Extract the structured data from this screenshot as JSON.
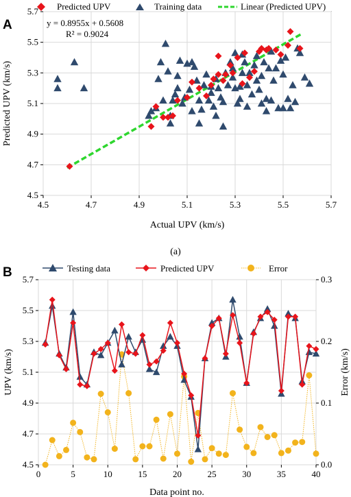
{
  "panel_a": {
    "panel_label": "A",
    "caption": "(a)",
    "legend": {
      "predicted": "Predicted UPV",
      "training": "Training data",
      "linear": "Linear (Predicted UPV)"
    },
    "equation": "y = 0.8955x + 0.5608",
    "r_squared": "R² = 0.9024"
  },
  "panel_b": {
    "panel_label": "B",
    "legend": {
      "testing": "Testing data",
      "predicted": "Predicted UPV",
      "error": "Error"
    }
  },
  "colors": {
    "predicted": "#e8141b",
    "training": "#2f4a6d",
    "linear": "#2ed62e",
    "error": "#f2b31c"
  },
  "chart_data": [
    {
      "type": "scatter",
      "xlabel": "Actual UPV (km/s)",
      "ylabel": "Predicted UPV (km/s)",
      "xlim": [
        4.5,
        5.7
      ],
      "ylim": [
        4.5,
        5.7
      ],
      "x_ticks": [
        "4.5",
        "4.7",
        "4.9",
        "5.1",
        "5.3",
        "5.5",
        "5.7"
      ],
      "y_ticks": [
        "4.5",
        "4.7",
        "4.9",
        "5.1",
        "5.3",
        "5.5",
        "5.7"
      ],
      "legend_position": "top",
      "series": [
        {
          "name": "Predicted UPV",
          "marker": "diamond",
          "points": [
            [
              4.61,
              4.69
            ],
            [
              4.95,
              4.95
            ],
            [
              4.97,
              5.08
            ],
            [
              5.0,
              5.01
            ],
            [
              5.02,
              5.01
            ],
            [
              5.04,
              5.02
            ],
            [
              5.06,
              5.12
            ],
            [
              5.1,
              5.14
            ],
            [
              5.12,
              5.24
            ],
            [
              5.15,
              5.2
            ],
            [
              5.18,
              5.15
            ],
            [
              5.2,
              5.22
            ],
            [
              5.21,
              5.26
            ],
            [
              5.23,
              5.29
            ],
            [
              5.23,
              5.41
            ],
            [
              5.25,
              5.25
            ],
            [
              5.26,
              5.29
            ],
            [
              5.28,
              5.35
            ],
            [
              5.29,
              5.3
            ],
            [
              5.31,
              5.4
            ],
            [
              5.33,
              5.23
            ],
            [
              5.34,
              5.43
            ],
            [
              5.36,
              5.27
            ],
            [
              5.38,
              5.31
            ],
            [
              5.4,
              5.44
            ],
            [
              5.41,
              5.46
            ],
            [
              5.43,
              5.45
            ],
            [
              5.44,
              5.46
            ],
            [
              5.47,
              5.45
            ],
            [
              5.49,
              5.42
            ],
            [
              5.52,
              5.48
            ],
            [
              5.53,
              5.57
            ],
            [
              5.57,
              5.46
            ]
          ]
        },
        {
          "name": "Training data",
          "marker": "triangle",
          "points": [
            [
              4.56,
              5.26
            ],
            [
              4.56,
              5.2
            ],
            [
              4.63,
              5.37
            ],
            [
              4.67,
              5.2
            ],
            [
              4.94,
              5.02
            ],
            [
              4.95,
              5.05
            ],
            [
              4.97,
              5.07
            ],
            [
              4.98,
              5.26
            ],
            [
              4.99,
              5.37
            ],
            [
              5.0,
              5.12
            ],
            [
              5.01,
              5.49
            ],
            [
              5.02,
              5.31
            ],
            [
              5.03,
              4.97
            ],
            [
              5.03,
              5.02
            ],
            [
              5.04,
              5.12
            ],
            [
              5.05,
              5.16
            ],
            [
              5.06,
              5.2
            ],
            [
              5.06,
              5.28
            ],
            [
              5.07,
              5.38
            ],
            [
              5.08,
              5.1
            ],
            [
              5.09,
              5.14
            ],
            [
              5.1,
              5.36
            ],
            [
              5.11,
              5.19
            ],
            [
              5.12,
              5.37
            ],
            [
              5.12,
              5.05
            ],
            [
              5.13,
              5.34
            ],
            [
              5.14,
              5.25
            ],
            [
              5.15,
              4.97
            ],
            [
              5.15,
              5.12
            ],
            [
              5.16,
              5.06
            ],
            [
              5.17,
              5.22
            ],
            [
              5.18,
              5.29
            ],
            [
              5.19,
              5.12
            ],
            [
              5.2,
              5.17
            ],
            [
              5.2,
              5.21
            ],
            [
              5.21,
              5.08
            ],
            [
              5.22,
              5.26
            ],
            [
              5.22,
              5.02
            ],
            [
              5.23,
              5.2
            ],
            [
              5.24,
              5.14
            ],
            [
              5.25,
              4.95
            ],
            [
              5.25,
              5.11
            ],
            [
              5.26,
              5.3
            ],
            [
              5.27,
              5.22
            ],
            [
              5.28,
              5.37
            ],
            [
              5.29,
              5.33
            ],
            [
              5.29,
              5.27
            ],
            [
              5.3,
              5.43
            ],
            [
              5.3,
              5.2
            ],
            [
              5.31,
              5.1
            ],
            [
              5.32,
              5.13
            ],
            [
              5.32,
              5.21
            ],
            [
              5.33,
              5.3
            ],
            [
              5.33,
              5.42
            ],
            [
              5.34,
              5.37
            ],
            [
              5.35,
              5.08
            ],
            [
              5.35,
              5.22
            ],
            [
              5.36,
              5.3
            ],
            [
              5.37,
              5.16
            ],
            [
              5.38,
              5.35
            ],
            [
              5.39,
              5.41
            ],
            [
              5.39,
              5.25
            ],
            [
              5.4,
              5.19
            ],
            [
              5.41,
              5.1
            ],
            [
              5.41,
              5.28
            ],
            [
              5.42,
              5.37
            ],
            [
              5.43,
              5.05
            ],
            [
              5.43,
              5.13
            ],
            [
              5.44,
              5.33
            ],
            [
              5.45,
              5.44
            ],
            [
              5.45,
              5.12
            ],
            [
              5.46,
              5.25
            ],
            [
              5.47,
              5.33
            ],
            [
              5.48,
              5.07
            ],
            [
              5.49,
              5.38
            ],
            [
              5.5,
              5.29
            ],
            [
              5.5,
              5.07
            ],
            [
              5.51,
              5.4
            ],
            [
              5.52,
              5.13
            ],
            [
              5.53,
              5.07
            ],
            [
              5.54,
              5.22
            ],
            [
              5.55,
              5.11
            ],
            [
              5.56,
              5.46
            ],
            [
              5.57,
              5.43
            ],
            [
              5.59,
              5.27
            ],
            [
              5.61,
              5.23
            ]
          ]
        },
        {
          "name": "Linear (Predicted UPV)",
          "type": "line",
          "slope": 0.8955,
          "intercept": 0.5608,
          "x_range": [
            4.6,
            5.58
          ]
        }
      ]
    },
    {
      "type": "line",
      "xlabel": "Data point no.",
      "ylabel": "UPV (km/s)",
      "y2label": "Error (km/s)",
      "xlim": [
        0,
        40
      ],
      "ylim": [
        4.5,
        5.7
      ],
      "y2lim": [
        0,
        0.3
      ],
      "x_ticks": [
        "0",
        "5",
        "10",
        "15",
        "20",
        "25",
        "30",
        "35",
        "40"
      ],
      "y_ticks": [
        "4.5",
        "4.7",
        "4.9",
        "5.1",
        "5.3",
        "5.5",
        "5.7"
      ],
      "y2_ticks": [
        "0.0",
        "0.1",
        "0.2",
        "0.3"
      ],
      "x": [
        1,
        2,
        3,
        4,
        5,
        6,
        7,
        8,
        9,
        10,
        11,
        12,
        13,
        14,
        15,
        16,
        17,
        18,
        19,
        20,
        21,
        22,
        23,
        24,
        25,
        26,
        27,
        28,
        29,
        30,
        31,
        32,
        33,
        34,
        35,
        36,
        37,
        38,
        39,
        40
      ],
      "series": [
        {
          "name": "Testing data",
          "axis": "left",
          "values": [
            5.29,
            5.53,
            5.22,
            5.13,
            5.49,
            5.07,
            5.02,
            5.23,
            5.21,
            5.29,
            5.37,
            5.15,
            5.33,
            5.23,
            5.31,
            5.12,
            5.1,
            5.27,
            5.33,
            5.27,
            5.05,
            4.94,
            4.6,
            5.19,
            5.42,
            5.45,
            5.2,
            5.57,
            5.33,
            5.03,
            5.36,
            5.45,
            5.51,
            5.4,
            4.96,
            5.48,
            5.45,
            5.04,
            5.23,
            5.22
          ]
        },
        {
          "name": "Predicted UPV",
          "axis": "left",
          "values": [
            5.28,
            5.57,
            5.21,
            5.12,
            5.42,
            5.02,
            5.01,
            5.22,
            5.25,
            5.29,
            5.11,
            5.41,
            5.23,
            5.22,
            5.34,
            5.15,
            5.17,
            5.24,
            5.42,
            5.29,
            5.09,
            4.95,
            4.69,
            5.19,
            5.4,
            5.45,
            5.22,
            5.47,
            5.29,
            5.03,
            5.35,
            5.46,
            5.49,
            5.44,
            4.98,
            5.46,
            5.46,
            5.02,
            5.27,
            5.25
          ]
        },
        {
          "name": "Error",
          "axis": "right",
          "values": [
            0.0,
            0.04,
            0.014,
            0.024,
            0.068,
            0.053,
            0.012,
            0.009,
            0.115,
            0.085,
            0.026,
            0.179,
            0.116,
            0.009,
            0.03,
            0.03,
            0.073,
            0.01,
            0.082,
            0.018,
            0.143,
            0.005,
            0.084,
            0.009,
            0.027,
            0.018,
            0.016,
            0.116,
            0.057,
            0.029,
            0.019,
            0.061,
            0.045,
            0.048,
            0.019,
            0.023,
            0.036,
            0.037,
            0.145,
            0.018
          ]
        }
      ]
    }
  ]
}
